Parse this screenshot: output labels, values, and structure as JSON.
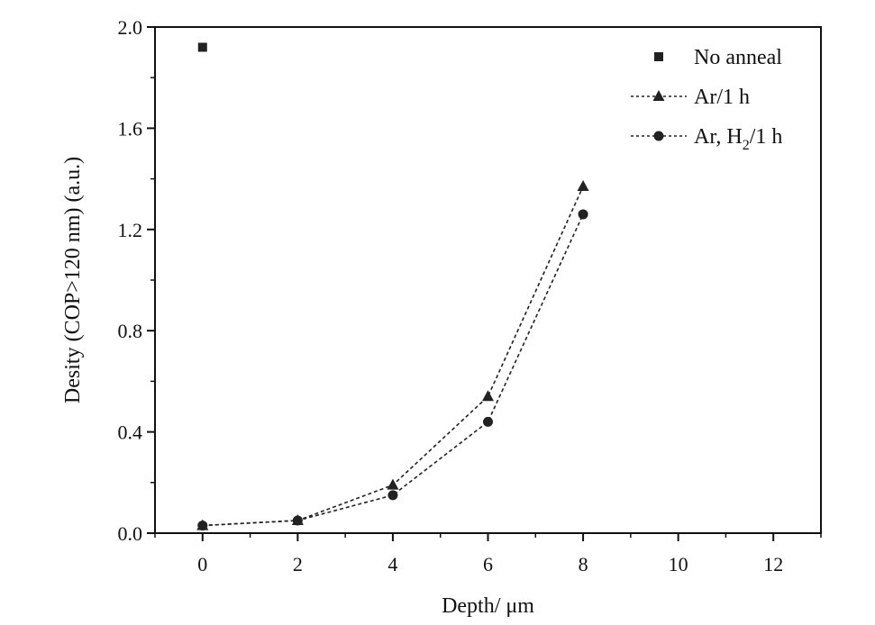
{
  "chart_data": {
    "type": "scatter",
    "title": "",
    "xlabel": "Depth/ μm",
    "ylabel": "Desity (COP>120 nm) (a.u.)",
    "xlim": [
      -1,
      13
    ],
    "ylim": [
      0,
      2.0
    ],
    "x_ticks": [
      0,
      2,
      4,
      6,
      8,
      10,
      12
    ],
    "x_tick_labels": [
      "0",
      "2",
      "4",
      "6",
      "8",
      "10",
      "12"
    ],
    "y_ticks": [
      0.0,
      0.4,
      0.8,
      1.2,
      1.6,
      2.0
    ],
    "y_tick_labels": [
      "0.0",
      "0.4",
      "0.8",
      "1.2",
      "1.6",
      "2.0"
    ],
    "grid": false,
    "legend_position": "top-right",
    "series": [
      {
        "name": "No anneal",
        "marker": "square",
        "line": "none",
        "color": "#222222",
        "x": [
          0
        ],
        "y": [
          1.92
        ]
      },
      {
        "name": "Ar/1 h",
        "marker": "triangle",
        "line": "dashed",
        "color": "#222222",
        "x": [
          0,
          2,
          4,
          6,
          8
        ],
        "y": [
          0.03,
          0.05,
          0.19,
          0.54,
          1.37
        ]
      },
      {
        "name": "Ar, H₂/1 h",
        "legend_main": "Ar, H",
        "legend_sub": "2",
        "legend_tail": "/1 h",
        "marker": "circle",
        "line": "dashed",
        "color": "#222222",
        "x": [
          0,
          2,
          4,
          6,
          8
        ],
        "y": [
          0.03,
          0.05,
          0.15,
          0.44,
          1.26
        ]
      }
    ]
  }
}
